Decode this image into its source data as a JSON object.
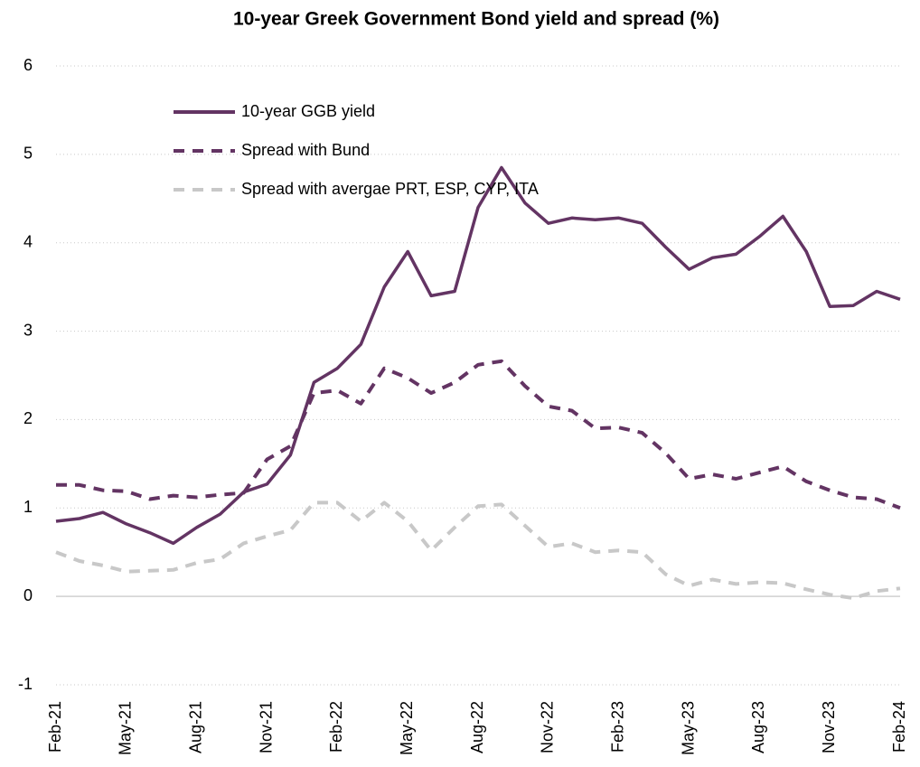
{
  "chart_data": {
    "type": "line",
    "title": "10-year Greek Government Bond yield and spread (%)",
    "categories": [
      "Feb-21",
      null,
      null,
      "May-21",
      null,
      null,
      "Aug-21",
      null,
      null,
      "Nov-21",
      null,
      null,
      "Feb-22",
      null,
      null,
      "May-22",
      null,
      null,
      "Aug-22",
      null,
      null,
      "Nov-22",
      null,
      null,
      "Feb-23",
      null,
      null,
      "May-23",
      null,
      null,
      "Aug-23",
      null,
      null,
      "Nov-23",
      null,
      null,
      "Feb-24"
    ],
    "series": [
      {
        "name": "10-year GGB yield",
        "color": "#633463",
        "dash": "solid",
        "values": [
          0.85,
          0.88,
          0.95,
          0.82,
          0.72,
          0.6,
          0.78,
          0.93,
          1.18,
          1.27,
          1.6,
          2.42,
          2.58,
          2.85,
          3.5,
          3.9,
          3.4,
          3.45,
          4.4,
          4.85,
          4.45,
          4.22,
          4.28,
          4.26,
          4.28,
          4.22,
          3.95,
          3.7,
          3.83,
          3.87,
          4.07,
          4.3,
          3.9,
          3.28,
          3.29,
          3.45,
          3.36
        ]
      },
      {
        "name": "Spread with Bund",
        "color": "#633463",
        "dash": "dashed",
        "values": [
          1.26,
          1.26,
          1.2,
          1.19,
          1.1,
          1.14,
          1.12,
          1.15,
          1.17,
          1.55,
          1.7,
          2.3,
          2.33,
          2.18,
          2.58,
          2.47,
          2.3,
          2.42,
          2.62,
          2.66,
          2.38,
          2.15,
          2.1,
          1.9,
          1.91,
          1.85,
          1.62,
          1.33,
          1.38,
          1.33,
          1.4,
          1.47,
          1.3,
          1.2,
          1.12,
          1.1,
          1.0
        ]
      },
      {
        "name": "Spread with avergae PRT, ESP, CYP, ITA",
        "color": "#c8c8c8",
        "dash": "dashed",
        "values": [
          0.5,
          0.4,
          0.35,
          0.28,
          0.29,
          0.3,
          0.38,
          0.42,
          0.6,
          0.68,
          0.75,
          1.06,
          1.06,
          0.85,
          1.06,
          0.85,
          0.52,
          0.78,
          1.02,
          1.04,
          0.8,
          0.56,
          0.6,
          0.5,
          0.52,
          0.5,
          0.25,
          0.12,
          0.19,
          0.14,
          0.16,
          0.15,
          0.08,
          0.02,
          -0.02,
          0.06,
          0.09
        ]
      }
    ],
    "ylim": [
      -1,
      6
    ],
    "yticks": [
      -1,
      0,
      1,
      2,
      3,
      4,
      5,
      6
    ],
    "grid": true,
    "legend": "upper-left"
  }
}
